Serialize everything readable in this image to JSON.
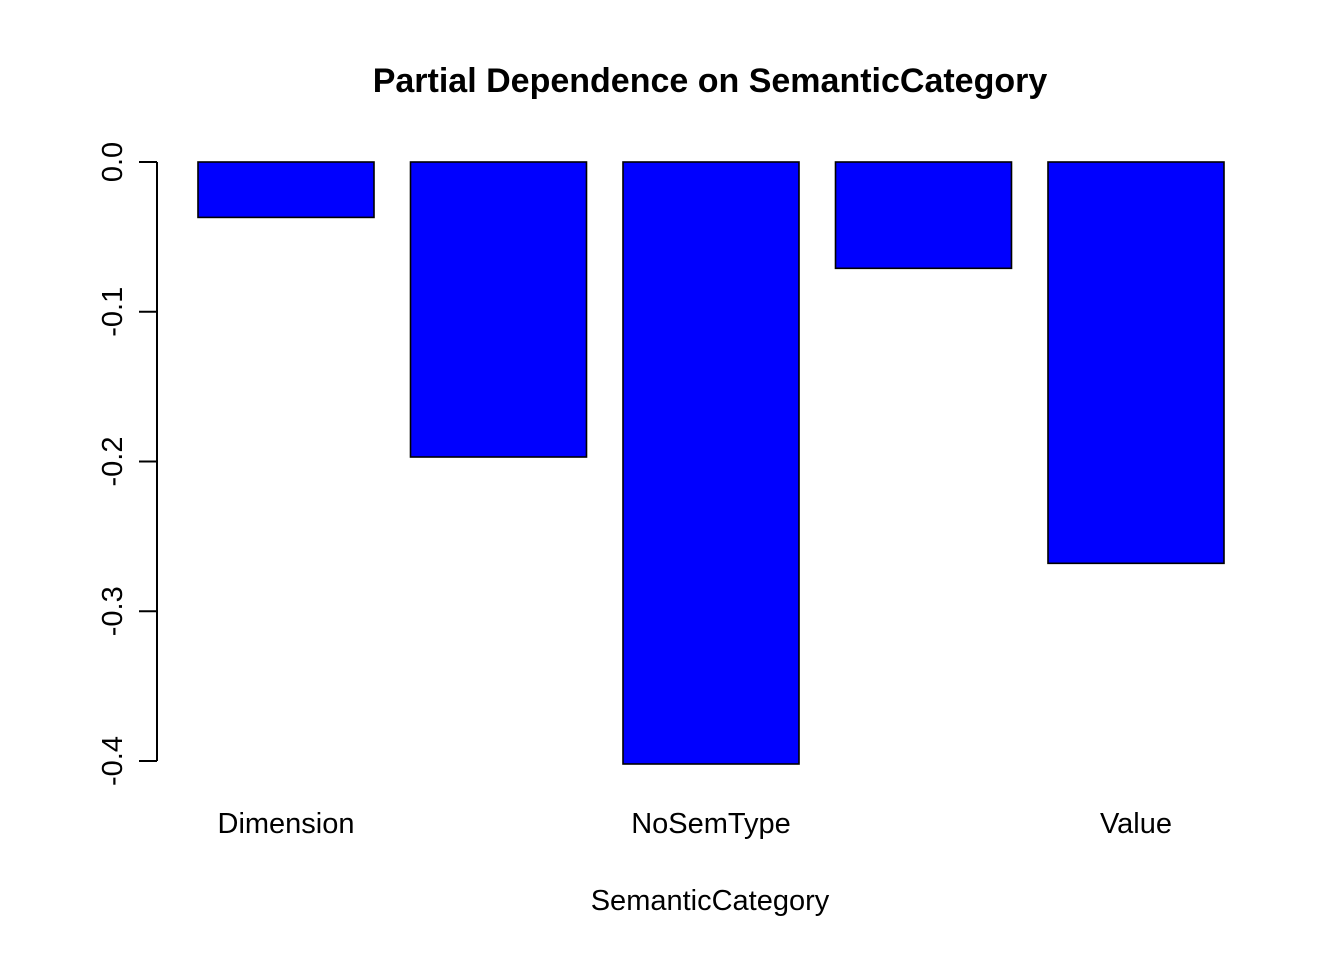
{
  "chart_data": {
    "type": "bar",
    "title": "Partial Dependence on SemanticCategory",
    "xlabel": "SemanticCategory",
    "ylabel": "",
    "categories": [
      "Dimension",
      "",
      "NoSemType",
      "",
      "Value"
    ],
    "values": [
      -0.037,
      -0.197,
      -0.402,
      -0.071,
      -0.268
    ],
    "ylim": [
      -0.4,
      0.0
    ],
    "yticks": [
      0.0,
      -0.1,
      -0.2,
      -0.3,
      -0.4
    ],
    "ytick_labels": [
      "0.0",
      "-0.1",
      "-0.2",
      "-0.3",
      "-0.4"
    ],
    "bar_color": "#0000ff",
    "grid": false,
    "legend": "none"
  }
}
